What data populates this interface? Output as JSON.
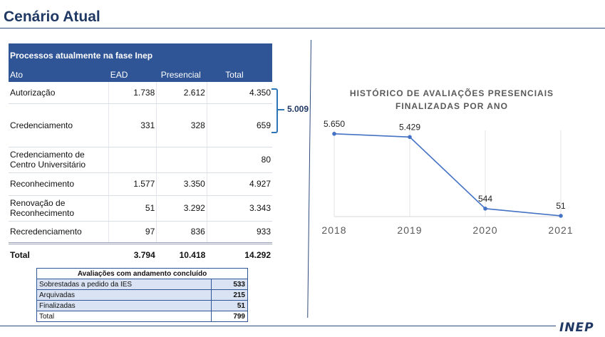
{
  "page": {
    "title": "Cenário Atual",
    "logo_text": "inep"
  },
  "table": {
    "caption": "Processos atualmente na fase Inep",
    "headers": [
      "Ato",
      "EAD",
      "Presencial",
      "Total"
    ],
    "rows": [
      {
        "ato": "Autorização",
        "ead": "1.738",
        "presencial": "2.612",
        "total": "4.350"
      },
      {
        "ato": "Credenciamento",
        "ead": "331",
        "presencial": "328",
        "total": "659"
      },
      {
        "ato": "Credenciamento de Centro Universitário",
        "ead": "",
        "presencial": "",
        "total": "80"
      },
      {
        "ato": "Reconhecimento",
        "ead": "1.577",
        "presencial": "3.350",
        "total": "4.927"
      },
      {
        "ato": "Renovação de Reconhecimento",
        "ead": "51",
        "presencial": "3.292",
        "total": "3.343"
      },
      {
        "ato": "Recredenciamento",
        "ead": "97",
        "presencial": "836",
        "total": "933"
      }
    ],
    "total": {
      "label": "Total",
      "ead": "3.794",
      "presencial": "10.418",
      "total": "14.292"
    },
    "brace_sum": "5.009"
  },
  "concluded": {
    "caption": "Avaliações com andamento concluído",
    "rows": [
      {
        "label": "Sobrestadas a pedido da IES",
        "value": "533"
      },
      {
        "label": "Arquivadas",
        "value": "215"
      },
      {
        "label": "Finalizadas",
        "value": "51"
      },
      {
        "label": "Total",
        "value": "799"
      }
    ]
  },
  "chart_data": {
    "type": "line",
    "title_lines": [
      "HISTÓRICO DE AVALIAÇÕES PRESENCIAIS",
      "FINALIZADAS POR ANO"
    ],
    "categories": [
      "2018",
      "2019",
      "2020",
      "2021"
    ],
    "values": [
      5650,
      5429,
      544,
      51
    ],
    "data_labels": [
      "5.650",
      "5.429",
      "544",
      "51"
    ],
    "color": "#4472c4",
    "grid": "vertical",
    "ylim": [
      0,
      7000
    ]
  }
}
